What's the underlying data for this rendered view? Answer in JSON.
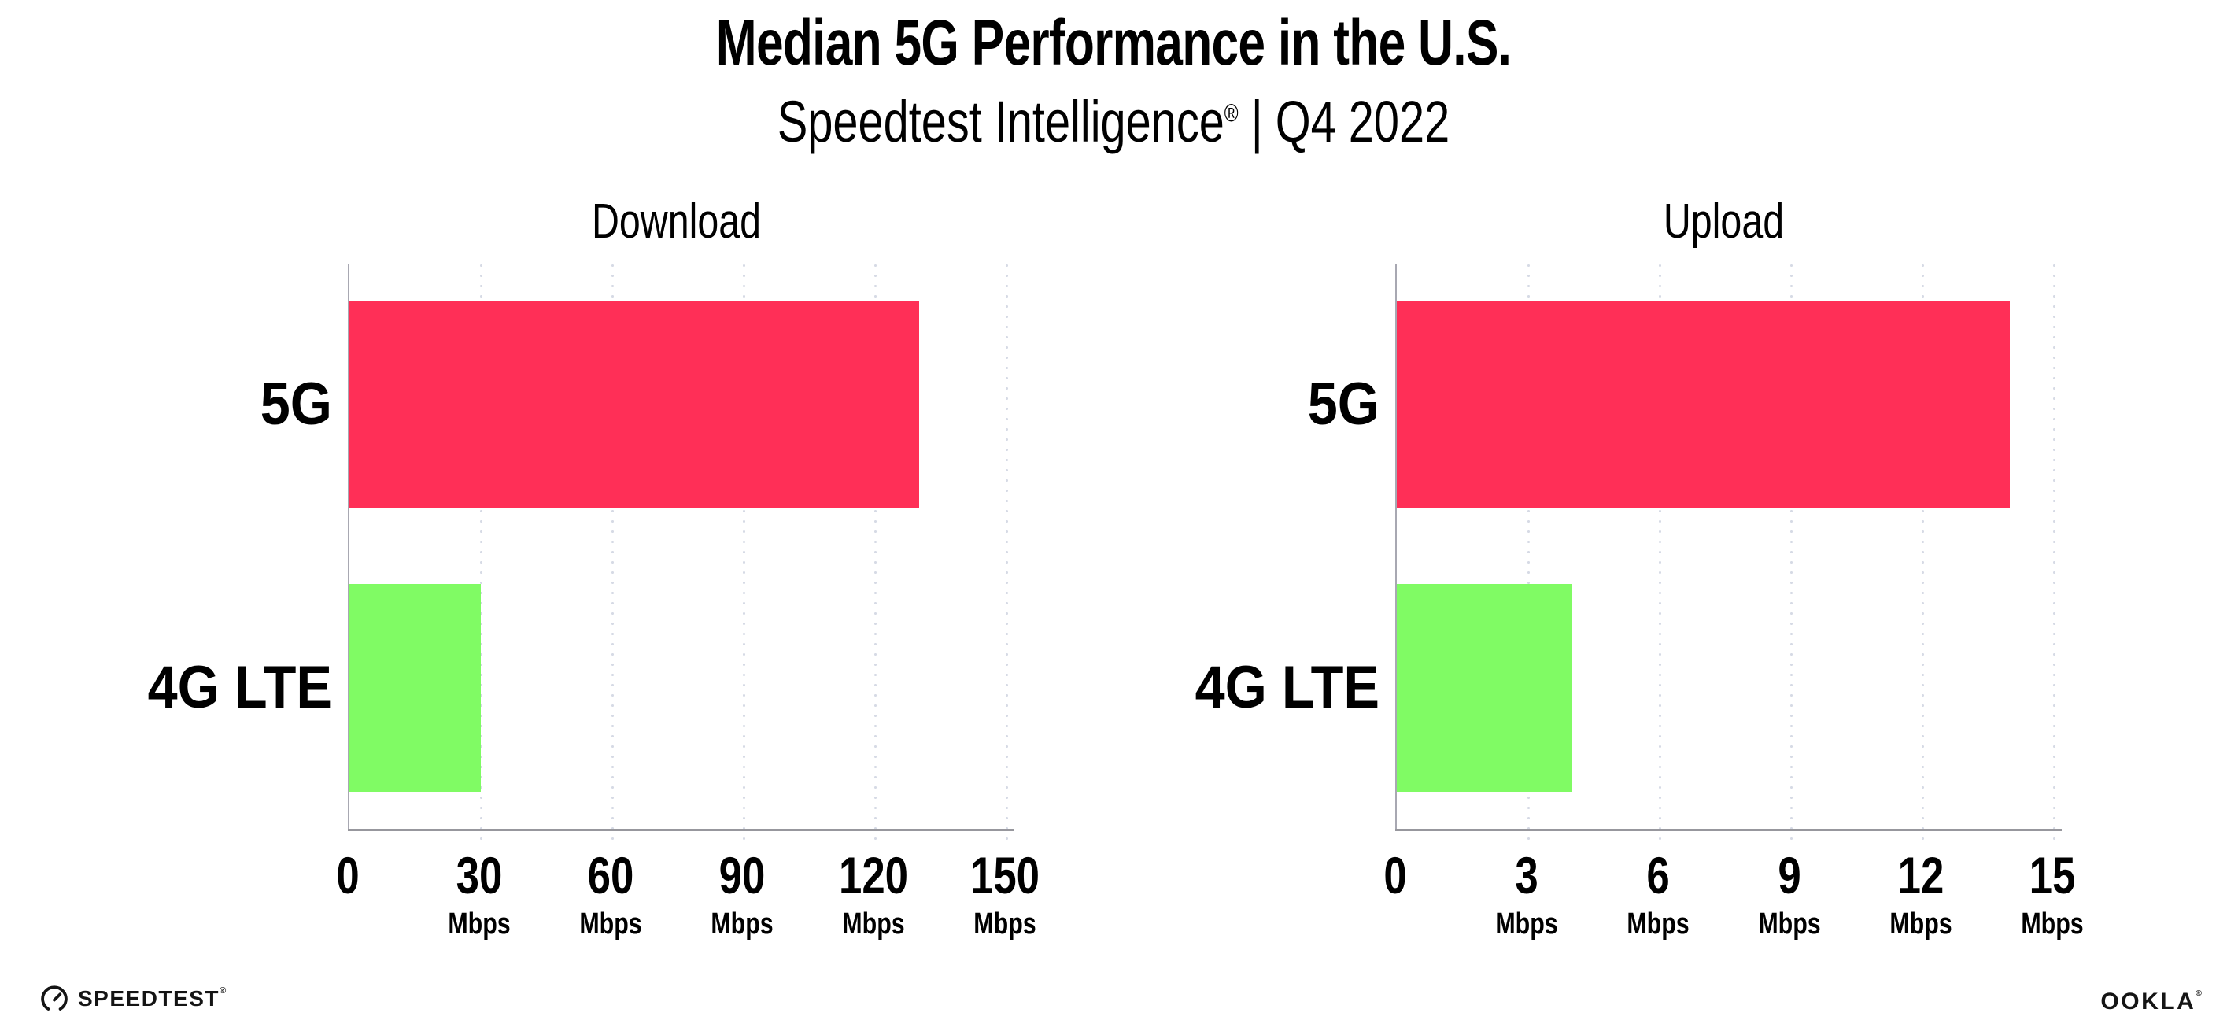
{
  "header": {
    "title": "Median 5G Performance in the U.S.",
    "subtitle_brand": "Speedtest Intelligence",
    "subtitle_mark": "®",
    "subtitle_rest": " | Q4 2022"
  },
  "chart_data": [
    {
      "type": "bar",
      "orientation": "horizontal",
      "title": "Download",
      "categories": [
        "5G",
        "4G LTE"
      ],
      "values": [
        130,
        30
      ],
      "unit": "Mbps",
      "xlim": [
        0,
        150
      ],
      "xticks": [
        0,
        30,
        60,
        90,
        120,
        150
      ],
      "bar_colors": [
        "#ff2f57",
        "#80fb64"
      ],
      "grid": "dotted-vertical",
      "legend": "none"
    },
    {
      "type": "bar",
      "orientation": "horizontal",
      "title": "Upload",
      "categories": [
        "5G",
        "4G LTE"
      ],
      "values": [
        14,
        4
      ],
      "unit": "Mbps",
      "xlim": [
        0,
        15
      ],
      "xticks": [
        0,
        3,
        6,
        9,
        12,
        15
      ],
      "bar_colors": [
        "#ff2f57",
        "#80fb64"
      ],
      "grid": "dotted-vertical",
      "legend": "none"
    }
  ],
  "colors": {
    "bar_5g": "#ff2f57",
    "bar_4g_lte": "#80fb64",
    "gridline": "#d6dae5",
    "axis": "#97979d"
  },
  "footer": {
    "speedtest_label": "SPEEDTEST",
    "speedtest_mark": "®",
    "ookla_label": "OOKLA",
    "ookla_mark": "®"
  }
}
